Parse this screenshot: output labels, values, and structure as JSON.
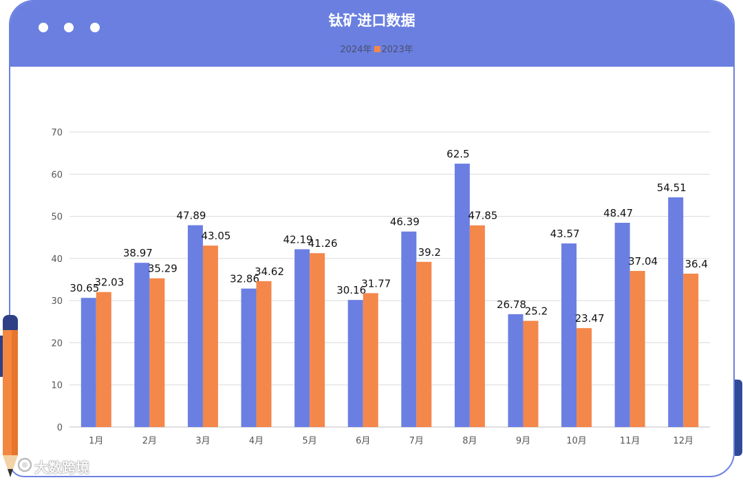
{
  "window": {
    "controls": [
      "dot",
      "dot",
      "dot"
    ]
  },
  "colors": {
    "header": "#6a7fe0",
    "series_2024": "#6b7fe2",
    "series_2023": "#f4874a",
    "grid": "#d9d9d9"
  },
  "watermark": {
    "text": "大数跨境"
  },
  "chart_data": {
    "type": "bar",
    "title": "钛矿进口数据",
    "categories": [
      "1月",
      "2月",
      "3月",
      "4月",
      "5月",
      "6月",
      "7月",
      "8月",
      "9月",
      "10月",
      "11月",
      "12月"
    ],
    "series": [
      {
        "name": "2024年",
        "color": "#6b7fe2",
        "values": [
          30.65,
          38.97,
          47.89,
          32.86,
          42.19,
          30.16,
          46.39,
          62.5,
          26.78,
          43.57,
          48.47,
          54.51
        ]
      },
      {
        "name": "2023年",
        "color": "#f4874a",
        "values": [
          32.03,
          35.29,
          43.05,
          34.62,
          41.26,
          31.77,
          39.2,
          47.85,
          25.2,
          23.47,
          37.04,
          36.4
        ]
      }
    ],
    "ylim": [
      0,
      70
    ],
    "yticks": [
      0,
      10,
      20,
      30,
      40,
      50,
      60,
      70
    ],
    "grid": true,
    "legend_position": "top-center"
  }
}
